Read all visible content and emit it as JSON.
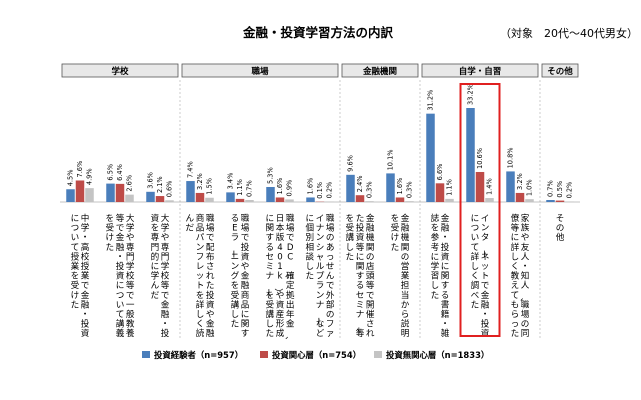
{
  "chart_data": {
    "type": "bar",
    "title": "金融・投資学習方法の内訳",
    "subtitle": "（対象　20代〜40代男女）",
    "groups": [
      {
        "label": "学校",
        "count": 3
      },
      {
        "label": "職場",
        "count": 4
      },
      {
        "label": "金融機関",
        "count": 2
      },
      {
        "label": "自学・自習",
        "count": 3
      },
      {
        "label": "その他",
        "count": 1
      }
    ],
    "categories": [
      "中学・高校授業で金融・投資について授業を受けた",
      "大学や専門学校等で一般教養等で金融・投資について講義を受けた",
      "大学や専門学校等で金融・投資を専門的に学んだ",
      "職場で配布された投資や金融商品パンフレットを詳しく読んだ",
      "職場で投資や金融商品に関するEラーニングを受講した",
      "職場でDC（確定拠出年金、日本版401k）や資産形成に関するセミナーを受講した",
      "職場のあっせんで外部のファイナンシャルプランナーなどに個別相談した",
      "金融機関の店頭等で開催された投資等に関するセミナー等を受講した",
      "金融機関の営業担当から説明を受けた",
      "金融・投資に関する書籍・雑誌を参考に学習した",
      "インターネットで金融・投資について詳しく調べた",
      "家族や友人・知人、職場の同僚等に詳しく教えてもらった",
      "その他"
    ],
    "series": [
      {
        "name": "投資経験者（n=957）",
        "color": "#4a7ebb",
        "values": [
          4.5,
          6.5,
          3.6,
          7.4,
          3.4,
          5.3,
          1.6,
          9.6,
          10.1,
          31.2,
          33.2,
          10.8,
          0.7
        ],
        "labels": [
          "4.5%",
          "6.5%",
          "3.6%",
          "7.4%",
          "3.4%",
          "5.3%",
          "1.6%",
          "9.6%",
          "10.1%",
          "31.2%",
          "33.2%",
          "10.8%",
          "0.7%"
        ]
      },
      {
        "name": "投資関心層（n=754）",
        "color": "#be4b48",
        "values": [
          7.6,
          6.4,
          2.1,
          3.2,
          1.1,
          1.6,
          0.1,
          2.4,
          1.6,
          6.6,
          10.6,
          3.2,
          0.5
        ],
        "labels": [
          "7.6%",
          "6.4%",
          "2.1%",
          "3.2%",
          "1.1%",
          "1.6%",
          "0.1%",
          "2.4%",
          "1.6%",
          "6.6%",
          "10.6%",
          "3.2%",
          "0.5%"
        ]
      },
      {
        "name": "投資無関心層（n=1833）",
        "color": "#c4c4c4",
        "values": [
          4.9,
          2.6,
          0.6,
          1.5,
          0.7,
          0.9,
          0.2,
          0.3,
          0.3,
          1.1,
          1.4,
          1.0,
          0.2
        ],
        "labels": [
          "4.9%",
          "2.6%",
          "0.6%",
          "1.5%",
          "0.7%",
          "0.9%",
          "0.2%",
          "0.3%",
          "0.3%",
          "1.1%",
          "1.4%",
          "1.0%",
          "0.2%"
        ]
      }
    ],
    "ylim": [
      0,
      40
    ],
    "highlight_category_index": 10,
    "highlight_color": "#e02020",
    "legend_position": "bottom"
  }
}
